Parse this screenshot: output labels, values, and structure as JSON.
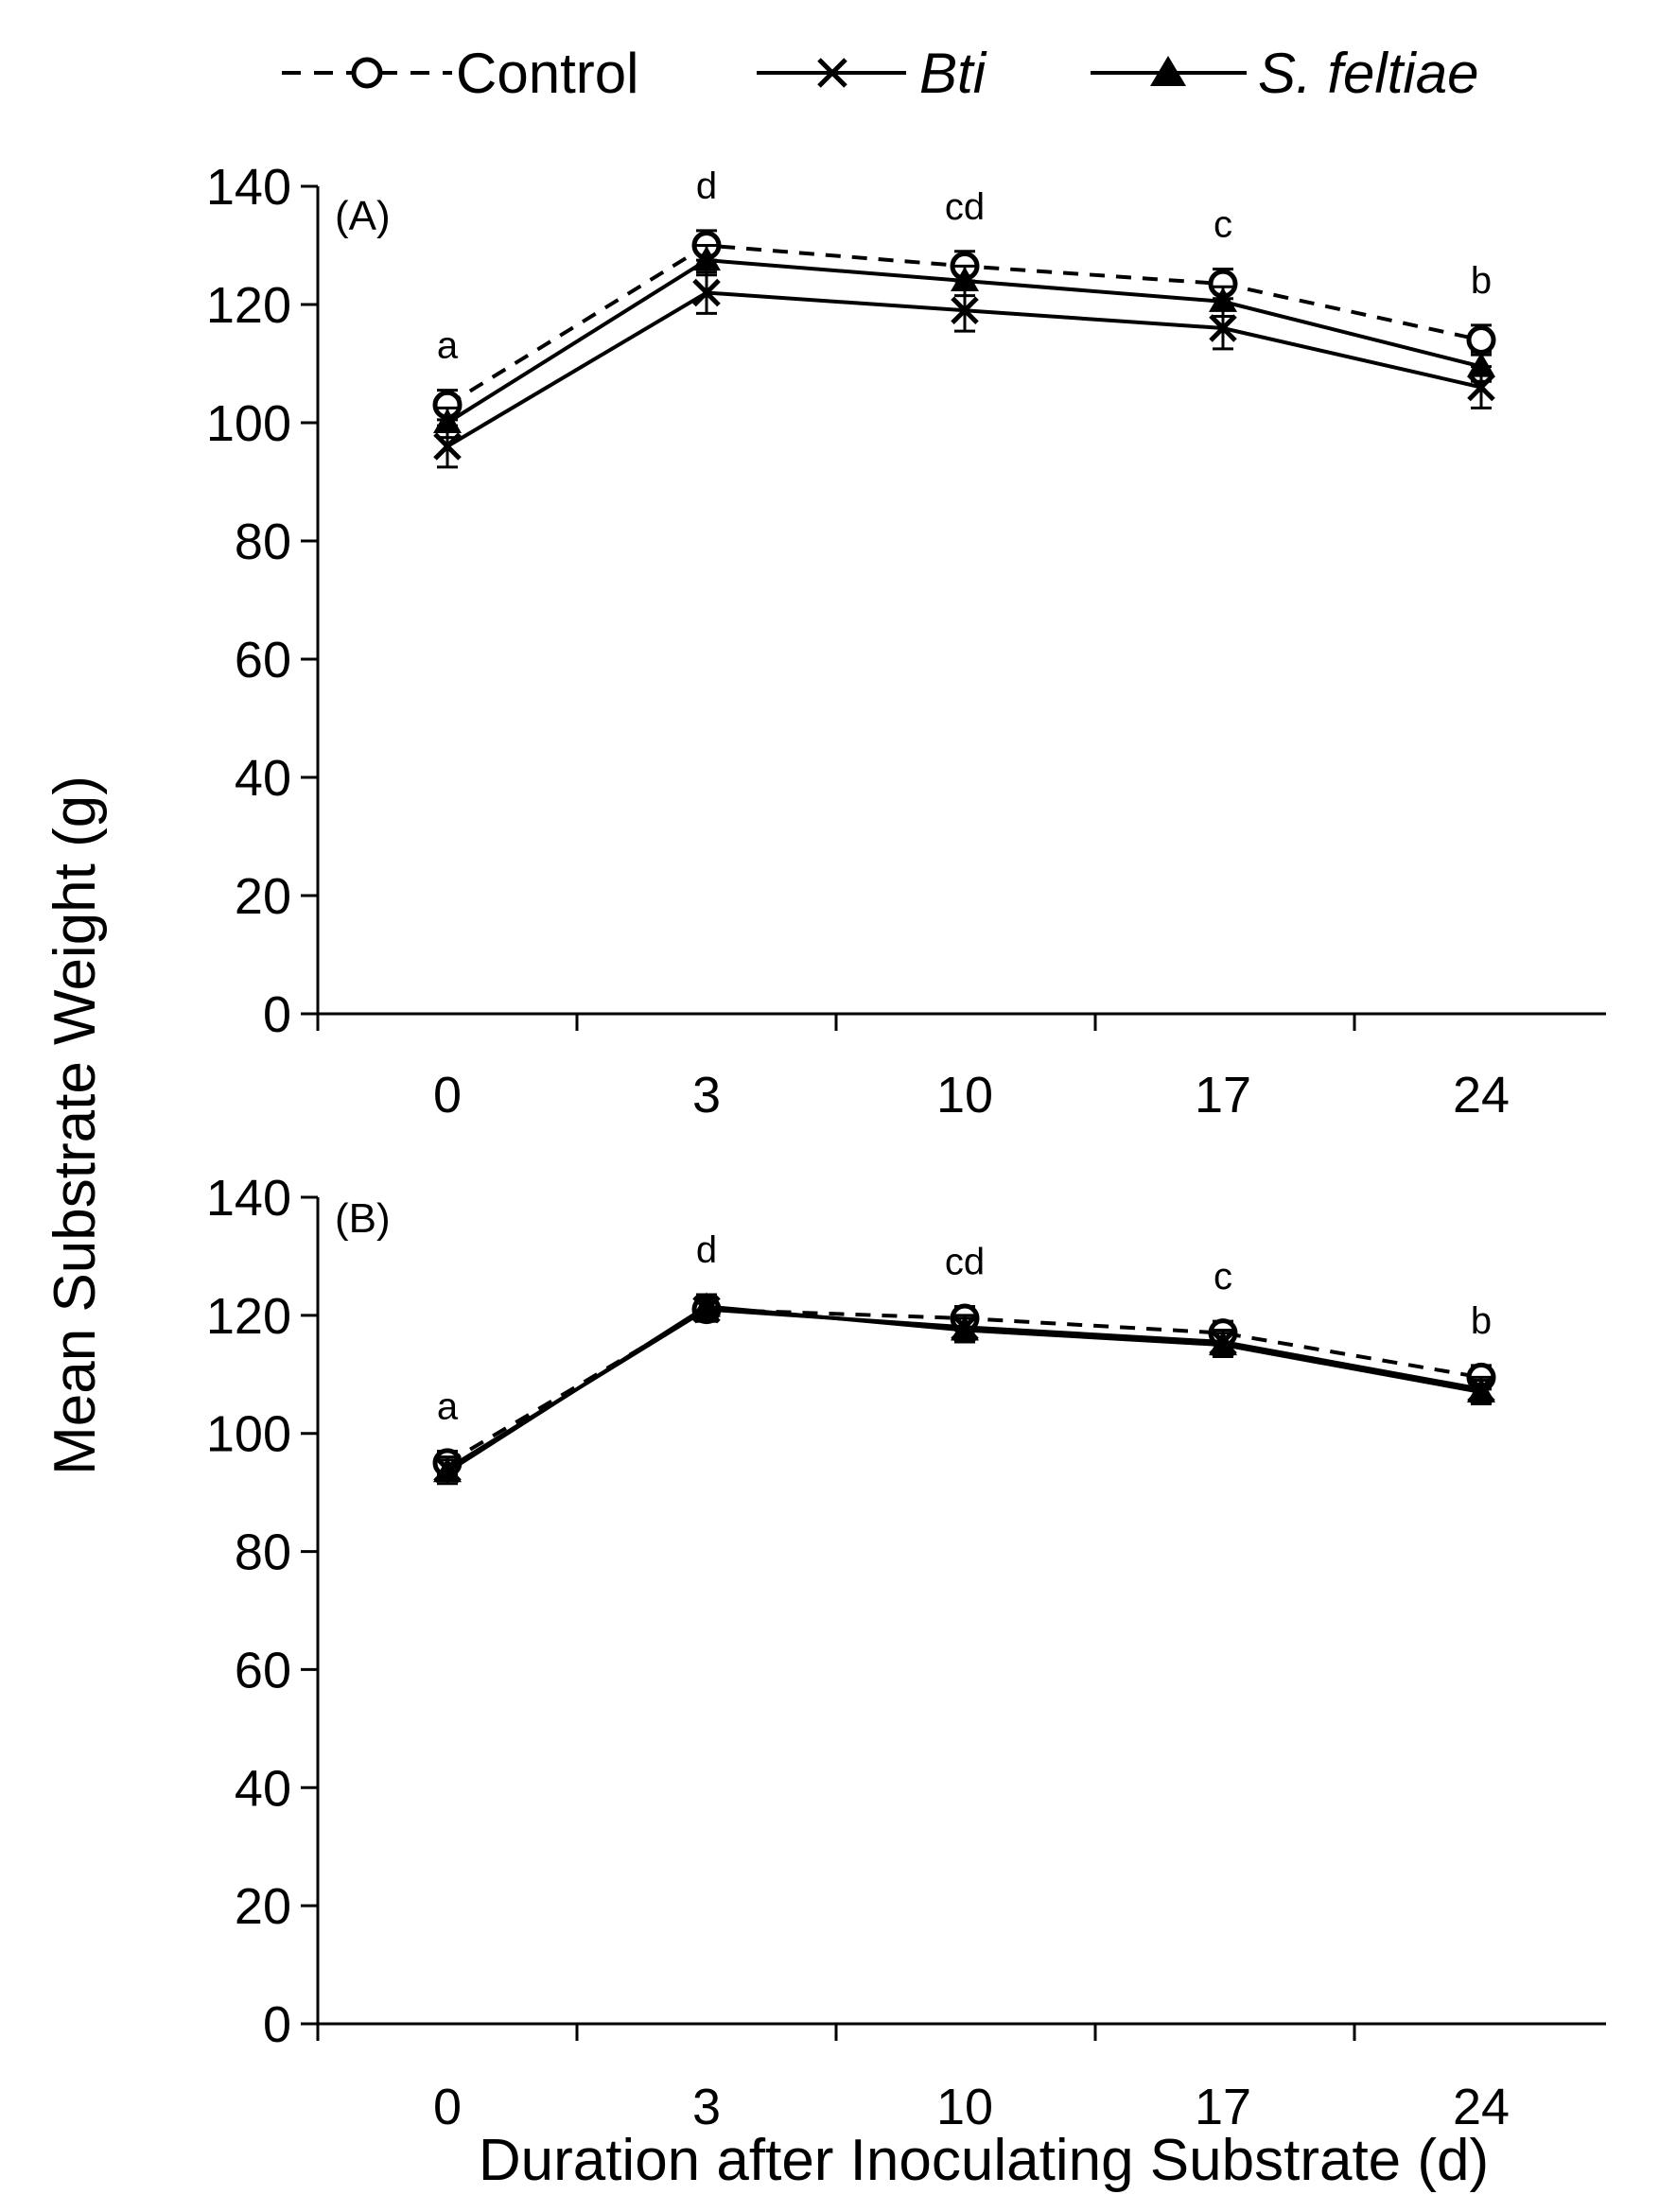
{
  "legend": {
    "control": "Control",
    "bti": "Bti",
    "sfeltiae": "S. feltiae"
  },
  "ylabel": "Mean Substrate Weight (g)",
  "xlabel": "Duration after Inoculating Substrate (d)",
  "chart_data": [
    {
      "type": "line",
      "panel": "(A)",
      "categories": [
        "0",
        "3",
        "10",
        "17",
        "24"
      ],
      "yticks": [
        "0",
        "20",
        "40",
        "60",
        "80",
        "100",
        "120",
        "140"
      ],
      "ylim": [
        0,
        140
      ],
      "letters": [
        "a",
        "d",
        "cd",
        "c",
        "b"
      ],
      "series": [
        {
          "name": "Control",
          "marker": "circle",
          "dash": true,
          "values": [
            103,
            130,
            126.5,
            123.5,
            114
          ],
          "errors": [
            2.5,
            2.5,
            2.5,
            2.5,
            2.5
          ]
        },
        {
          "name": "Bti",
          "marker": "x",
          "dash": false,
          "values": [
            96,
            122,
            119,
            116,
            106
          ],
          "errors": [
            3.5,
            3.5,
            3.5,
            3.5,
            3.5
          ]
        },
        {
          "name": "S. feltiae",
          "marker": "triangle",
          "dash": false,
          "values": [
            100,
            127.5,
            124,
            120.5,
            109.5
          ],
          "errors": [
            2.5,
            2.5,
            2.5,
            2.5,
            2.5
          ]
        }
      ]
    },
    {
      "type": "line",
      "panel": "(B)",
      "categories": [
        "0",
        "3",
        "10",
        "17",
        "24"
      ],
      "yticks": [
        "0",
        "20",
        "40",
        "60",
        "80",
        "100",
        "120",
        "140"
      ],
      "ylim": [
        0,
        140
      ],
      "letters": [
        "a",
        "d",
        "cd",
        "c",
        "b"
      ],
      "series": [
        {
          "name": "Control",
          "marker": "circle",
          "dash": true,
          "values": [
            95,
            121,
            119.5,
            117,
            109.5
          ],
          "errors": [
            2,
            2,
            2,
            2,
            2
          ]
        },
        {
          "name": "Bti",
          "marker": "x",
          "dash": false,
          "values": [
            94,
            121,
            118,
            115.5,
            107.5
          ],
          "errors": [
            2,
            2,
            2,
            2,
            2
          ]
        },
        {
          "name": "S. feltiae",
          "marker": "triangle",
          "dash": false,
          "values": [
            93.5,
            121.5,
            117.5,
            115,
            107
          ],
          "errors": [
            2,
            2,
            2,
            2,
            2
          ]
        }
      ]
    }
  ]
}
